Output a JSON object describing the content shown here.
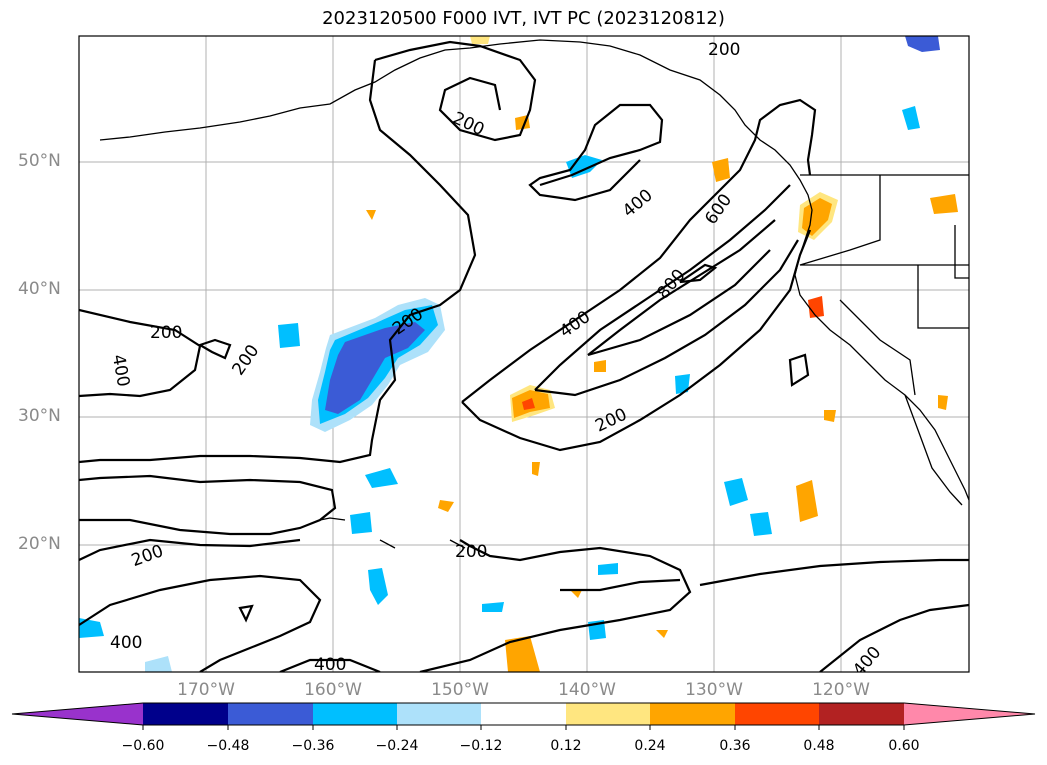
{
  "title": "2023120500 F000 IVT, IVT PC (2023120812)",
  "map": {
    "lat_labels": [
      "50°N",
      "40°N",
      "30°N",
      "20°N"
    ],
    "lon_labels": [
      "170°W",
      "160°W",
      "150°W",
      "140°W",
      "130°W",
      "120°W"
    ],
    "contour_labels": [
      "200",
      "200",
      "200",
      "200",
      "200",
      "200",
      "200",
      "200",
      "400",
      "400",
      "400",
      "400",
      "400",
      "400",
      "600",
      "800"
    ]
  },
  "colorbar": {
    "ticks": [
      "−0.60",
      "−0.48",
      "−0.36",
      "−0.24",
      "−0.12",
      "0.12",
      "0.24",
      "0.36",
      "0.48",
      "0.60"
    ],
    "colors": [
      "#9932CC",
      "#00008B",
      "#3B5BD6",
      "#00BFFF",
      "#ADE1FA",
      "#FFFFFF",
      "#FFE680",
      "#FFA500",
      "#FF4500",
      "#B22222",
      "#FF88AA"
    ]
  }
}
